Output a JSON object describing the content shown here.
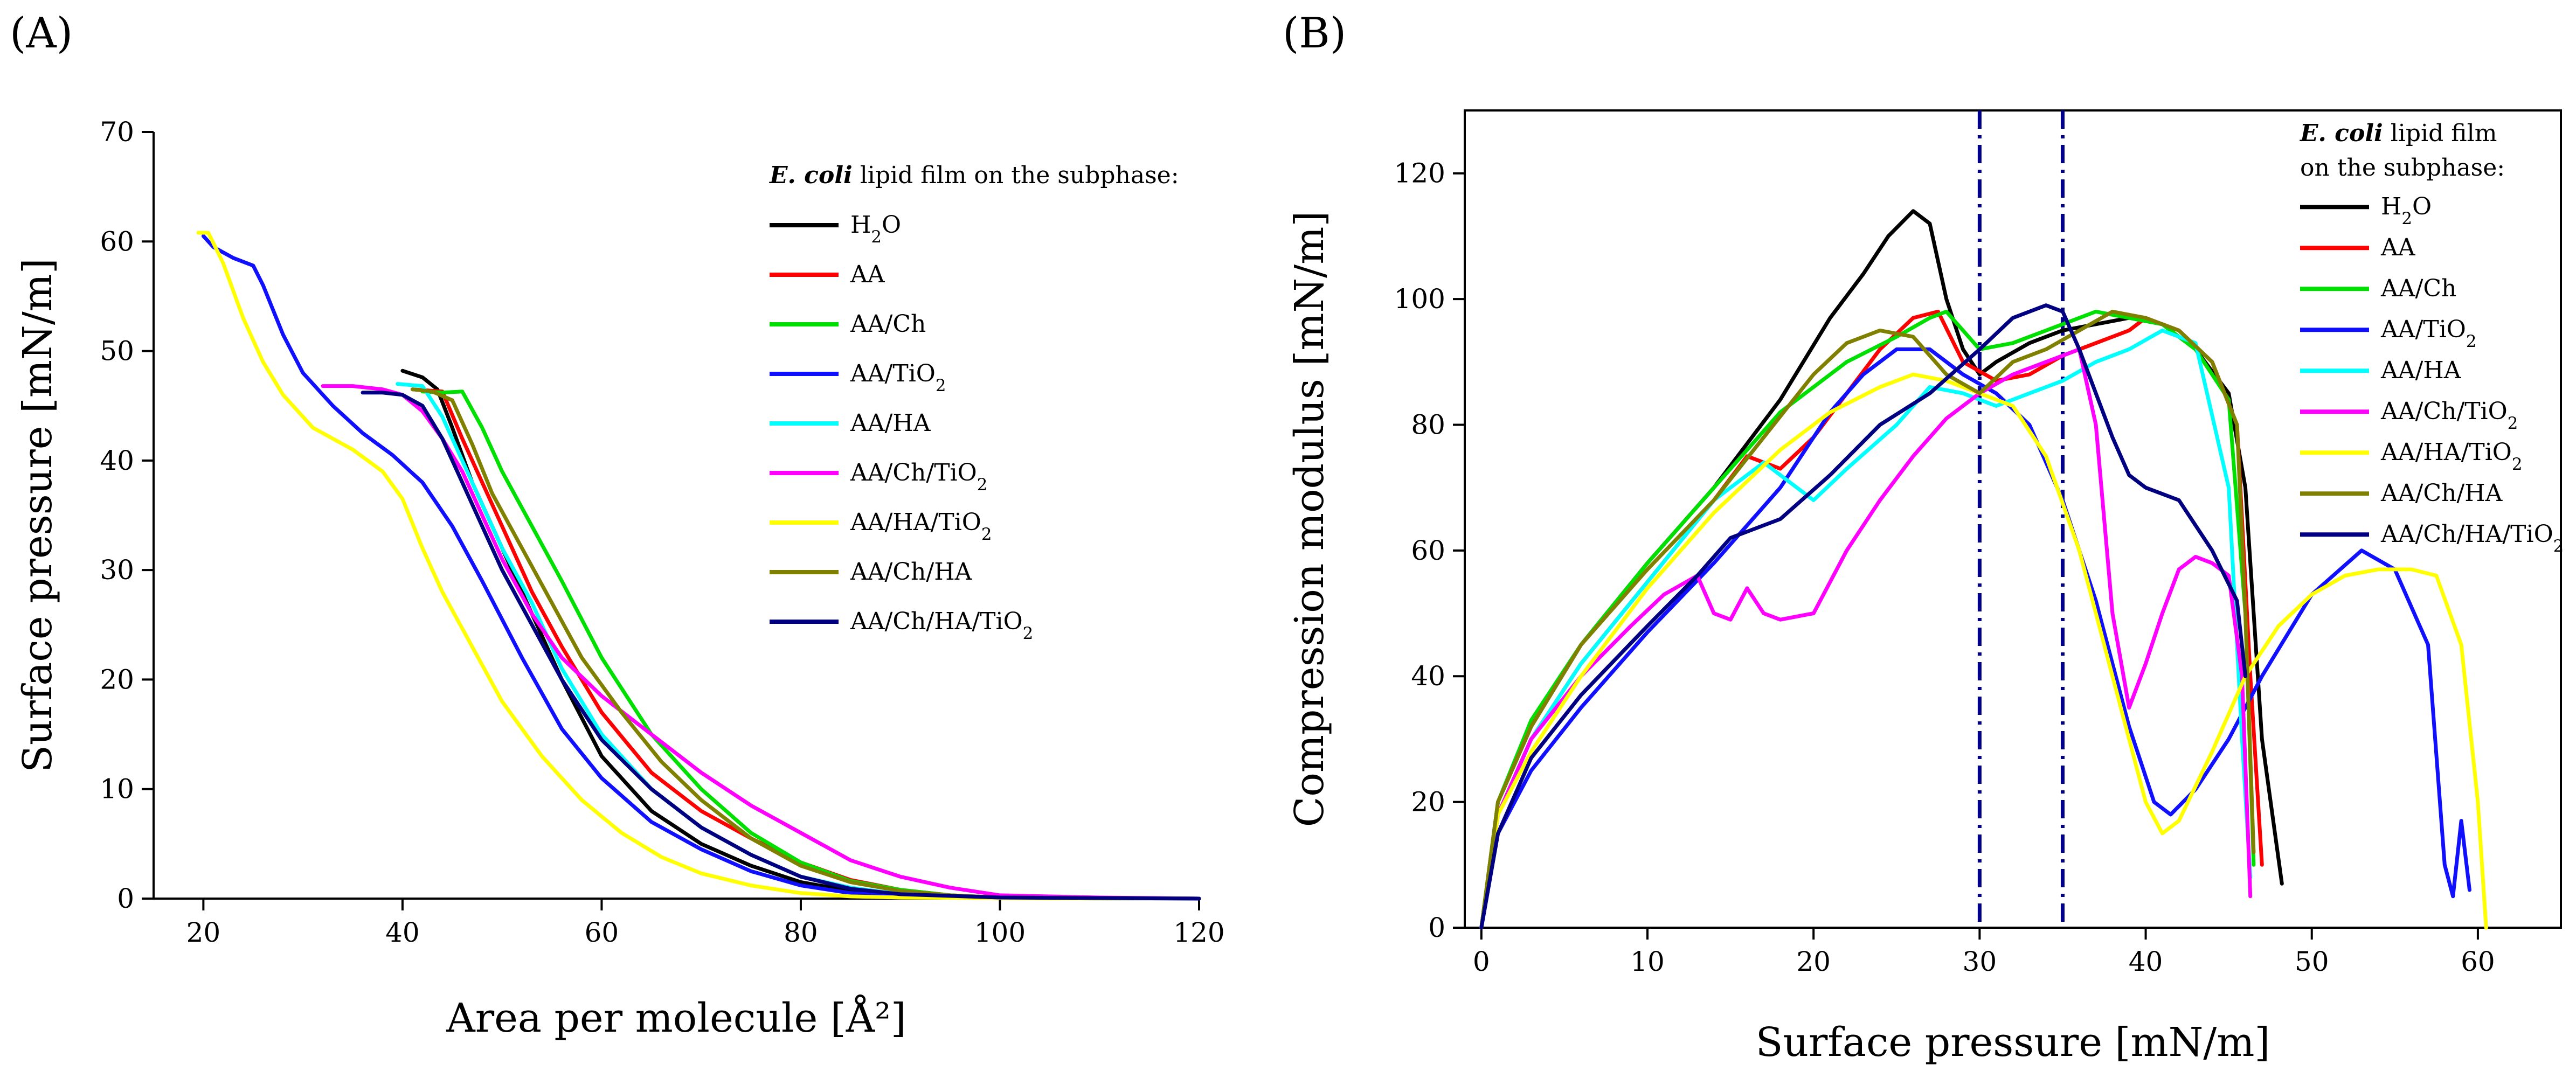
{
  "figure": {
    "panel_a_label": "(A)",
    "panel_b_label": "(B)"
  },
  "chart_data": [
    {
      "id": "A",
      "type": "line",
      "xlabel": "Area per molecule [Å²]",
      "ylabel": "Surface pressure [mN/m]",
      "xlim": [
        15,
        120
      ],
      "ylim": [
        0,
        70
      ],
      "xticks": [
        20,
        40,
        60,
        80,
        100,
        120
      ],
      "yticks": [
        0,
        10,
        20,
        30,
        40,
        50,
        60,
        70
      ],
      "legend": {
        "title_italic": "E. coli",
        "title_rest": " lipid film on the subphase:",
        "position": "top-right"
      },
      "series": [
        {
          "name": "H₂O",
          "color": "#000000",
          "x": [
            40,
            42,
            43.5,
            45,
            47,
            50,
            53,
            56,
            60,
            65,
            70,
            75,
            80,
            85,
            90,
            100,
            110,
            120
          ],
          "y": [
            48.2,
            47.6,
            46.5,
            43,
            38,
            32,
            26,
            20,
            13,
            8,
            5,
            3,
            1.5,
            0.7,
            0.3,
            0.1,
            0.05,
            0
          ]
        },
        {
          "name": "AA",
          "color": "#ff0000",
          "x": [
            41,
            44,
            46,
            48,
            50,
            53,
            56,
            60,
            65,
            70,
            75,
            80,
            85,
            90,
            95,
            100,
            110,
            120
          ],
          "y": [
            46.5,
            46.3,
            42,
            38,
            34,
            28,
            23,
            17,
            11.5,
            8,
            5.5,
            3.3,
            1.7,
            0.8,
            0.3,
            0.1,
            0.05,
            0
          ]
        },
        {
          "name": "AA/Ch",
          "color": "#00e000",
          "x": [
            42,
            44,
            46,
            48,
            50,
            53,
            56,
            60,
            65,
            70,
            75,
            80,
            85,
            90,
            95,
            100,
            110,
            120
          ],
          "y": [
            46.3,
            46.2,
            46.3,
            43,
            39,
            34,
            29,
            22,
            15,
            10,
            6,
            3.3,
            1.6,
            0.8,
            0.3,
            0.1,
            0.05,
            0
          ]
        },
        {
          "name": "AA/TiO₂",
          "color": "#1010ff",
          "x": [
            20,
            21,
            23,
            25,
            26,
            28,
            30,
            33,
            36,
            39,
            42,
            45,
            48,
            52,
            56,
            60,
            65,
            70,
            75,
            80,
            85,
            90,
            100,
            110,
            120
          ],
          "y": [
            60.5,
            59.5,
            58.5,
            57.8,
            56,
            51.5,
            48,
            45,
            42.5,
            40.5,
            38,
            34,
            29,
            22,
            15.5,
            11,
            7,
            4.5,
            2.5,
            1.2,
            0.5,
            0.2,
            0.05,
            0.02,
            0
          ]
        },
        {
          "name": "AA/HA",
          "color": "#00ffff",
          "x": [
            39.5,
            42,
            44,
            46,
            48,
            50,
            53,
            56,
            60,
            65,
            70,
            75,
            80,
            85,
            90,
            100,
            110,
            120
          ],
          "y": [
            47,
            46.8,
            44,
            40,
            36,
            32,
            27,
            21,
            15,
            10,
            6.5,
            4,
            2,
            1,
            0.4,
            0.1,
            0.05,
            0
          ]
        },
        {
          "name": "AA/Ch/TiO₂",
          "color": "#ff00ff",
          "x": [
            32,
            35,
            38,
            40,
            42,
            44,
            46,
            48,
            50,
            53,
            56,
            60,
            65,
            70,
            75,
            80,
            85,
            90,
            95,
            100,
            110,
            120
          ],
          "y": [
            46.8,
            46.8,
            46.5,
            46,
            44.5,
            42,
            39,
            35,
            31,
            26,
            22,
            18.5,
            15,
            11.5,
            8.5,
            6,
            3.5,
            2,
            1,
            0.3,
            0.1,
            0
          ]
        },
        {
          "name": "AA/HA/TiO₂",
          "color": "#ffff00",
          "x": [
            19.5,
            20.5,
            22,
            24,
            26,
            28,
            31,
            35,
            38,
            40,
            42,
            44,
            47,
            50,
            54,
            58,
            62,
            66,
            70,
            75,
            80,
            85,
            90,
            100,
            110,
            120
          ],
          "y": [
            60.8,
            60.8,
            58,
            53,
            49,
            46,
            43,
            41,
            39,
            36.5,
            32,
            28,
            23,
            18,
            13,
            9,
            6,
            3.8,
            2.3,
            1.2,
            0.5,
            0.2,
            0.1,
            0.05,
            0.02,
            0
          ]
        },
        {
          "name": "AA/Ch/HA",
          "color": "#808000",
          "x": [
            41,
            43,
            45,
            47,
            49,
            52,
            55,
            58,
            62,
            66,
            70,
            75,
            80,
            85,
            90,
            95,
            100,
            110,
            120
          ],
          "y": [
            46.5,
            46.3,
            45.5,
            41.5,
            37,
            32,
            27,
            22,
            17,
            12.5,
            9,
            5.5,
            3,
            1.5,
            0.7,
            0.3,
            0.1,
            0.05,
            0
          ]
        },
        {
          "name": "AA/Ch/HA/TiO₂",
          "color": "#000080",
          "x": [
            36,
            38,
            40,
            42,
            44,
            46,
            48,
            50,
            53,
            56,
            60,
            65,
            70,
            75,
            80,
            85,
            90,
            100,
            110,
            120
          ],
          "y": [
            46.2,
            46.2,
            46,
            45,
            42,
            38,
            34,
            30,
            25,
            20,
            14.5,
            10,
            6.5,
            4,
            2,
            0.9,
            0.4,
            0.1,
            0.05,
            0
          ]
        }
      ]
    },
    {
      "id": "B",
      "type": "line",
      "xlabel": "Surface pressure [mN/m]",
      "ylabel": "Compression modulus [mN/m]",
      "xlim": [
        -1,
        65
      ],
      "ylim": [
        0,
        130
      ],
      "xticks": [
        0,
        10,
        20,
        30,
        40,
        50,
        60
      ],
      "yticks": [
        0,
        20,
        40,
        60,
        80,
        100,
        120
      ],
      "vlines": [
        30,
        35
      ],
      "vline_color": "#00008b",
      "legend": {
        "title_italic": "E. coli",
        "title_rest": " lipid film",
        "title_line2": "on the subphase:",
        "position": "top-right"
      },
      "series": [
        {
          "name": "H₂O",
          "color": "#000000",
          "x": [
            0,
            1,
            3,
            6,
            10,
            14,
            18,
            21,
            23,
            24.5,
            26,
            27,
            28,
            29,
            30,
            31,
            33,
            35,
            37,
            39,
            41,
            43,
            45,
            46,
            47,
            48.2
          ],
          "y": [
            0,
            20,
            32,
            45,
            58,
            70,
            84,
            97,
            104,
            110,
            114,
            112,
            100,
            92,
            88,
            90,
            93,
            95,
            96,
            97,
            96,
            92,
            85,
            70,
            30,
            7
          ]
        },
        {
          "name": "AA",
          "color": "#ff0000",
          "x": [
            0,
            1,
            3,
            6,
            10,
            14,
            16,
            18,
            20,
            22,
            24,
            26,
            27.5,
            29,
            31,
            33,
            35,
            37,
            39,
            40,
            42,
            44,
            45.5,
            46.3,
            47
          ],
          "y": [
            0,
            18,
            30,
            42,
            55,
            68,
            75,
            73,
            78,
            85,
            92,
            97,
            98,
            90,
            87,
            88,
            91,
            93,
            95,
            97,
            95,
            90,
            80,
            40,
            10
          ]
        },
        {
          "name": "AA/Ch",
          "color": "#00e000",
          "x": [
            0,
            1,
            3,
            6,
            10,
            14,
            18,
            22,
            25,
            27,
            28,
            30,
            32,
            35,
            37,
            39,
            41,
            43,
            45,
            46,
            46.5
          ],
          "y": [
            0,
            20,
            33,
            45,
            58,
            70,
            82,
            90,
            94,
            97,
            98,
            92,
            93,
            96,
            98,
            97,
            96,
            92,
            84,
            50,
            10
          ]
        },
        {
          "name": "AA/TiO₂",
          "color": "#1010ff",
          "x": [
            0,
            1,
            3,
            6,
            10,
            14,
            18,
            21,
            23,
            25,
            27,
            29,
            31,
            33,
            35,
            37,
            39,
            40.5,
            41.5,
            43,
            45,
            47,
            50,
            53,
            55,
            57,
            58,
            58.5,
            59,
            59.5
          ],
          "y": [
            0,
            15,
            25,
            35,
            47,
            58,
            70,
            82,
            88,
            92,
            92,
            88,
            85,
            80,
            68,
            52,
            32,
            20,
            18,
            22,
            30,
            40,
            53,
            60,
            57,
            45,
            10,
            5,
            17,
            6
          ]
        },
        {
          "name": "AA/HA",
          "color": "#00ffff",
          "x": [
            0,
            1,
            3,
            6,
            10,
            14,
            17,
            19,
            20,
            22,
            25,
            27,
            29,
            31,
            33,
            35,
            37,
            39,
            41,
            43,
            45,
            45.8,
            46.3
          ],
          "y": [
            0,
            18,
            30,
            42,
            55,
            68,
            74,
            70,
            68,
            73,
            80,
            86,
            85,
            83,
            85,
            87,
            90,
            92,
            95,
            93,
            70,
            30,
            8
          ]
        },
        {
          "name": "AA/Ch/TiO₂",
          "color": "#ff00ff",
          "x": [
            0,
            1,
            3,
            6,
            9,
            11,
            13,
            14,
            15,
            16,
            17,
            18,
            20,
            22,
            24,
            26,
            28,
            30,
            32,
            34,
            35,
            36,
            37,
            38,
            39,
            40,
            41,
            42,
            43,
            44,
            45,
            45.8,
            46.3
          ],
          "y": [
            0,
            18,
            30,
            40,
            48,
            53,
            56,
            50,
            49,
            54,
            50,
            49,
            50,
            60,
            68,
            75,
            81,
            85,
            88,
            90,
            91,
            92,
            80,
            50,
            35,
            42,
            50,
            57,
            59,
            58,
            56,
            40,
            5
          ]
        },
        {
          "name": "AA/HA/TiO₂",
          "color": "#ffff00",
          "x": [
            0,
            1,
            3,
            6,
            10,
            14,
            18,
            21,
            24,
            26,
            28,
            30,
            32,
            34,
            36,
            38,
            40,
            41,
            42,
            44,
            46,
            48,
            50,
            52,
            54,
            56,
            57.5,
            59,
            60,
            60.5
          ],
          "y": [
            0,
            18,
            28,
            40,
            54,
            66,
            76,
            82,
            86,
            88,
            87,
            85,
            83,
            75,
            60,
            40,
            20,
            15,
            17,
            28,
            40,
            48,
            53,
            56,
            57,
            57,
            56,
            45,
            20,
            0
          ]
        },
        {
          "name": "AA/Ch/HA",
          "color": "#808000",
          "x": [
            0,
            1,
            3,
            6,
            10,
            14,
            17,
            20,
            22,
            24,
            26,
            28,
            30,
            32,
            34,
            36,
            38,
            40,
            42,
            44,
            45.5,
            46,
            46.5
          ],
          "y": [
            0,
            20,
            32,
            45,
            57,
            68,
            78,
            88,
            93,
            95,
            94,
            88,
            85,
            90,
            92,
            95,
            98,
            97,
            95,
            90,
            80,
            50,
            12
          ]
        },
        {
          "name": "AA/Ch/HA/TiO₂",
          "color": "#000080",
          "x": [
            0,
            1,
            3,
            6,
            10,
            13,
            15,
            18,
            21,
            24,
            27,
            30,
            32,
            34,
            35,
            36,
            37,
            38,
            39,
            40,
            41,
            42,
            44,
            45.5,
            46
          ],
          "y": [
            0,
            15,
            27,
            37,
            48,
            56,
            62,
            65,
            72,
            80,
            85,
            92,
            97,
            99,
            98,
            92,
            85,
            78,
            72,
            70,
            69,
            68,
            60,
            52,
            40
          ]
        }
      ]
    }
  ]
}
